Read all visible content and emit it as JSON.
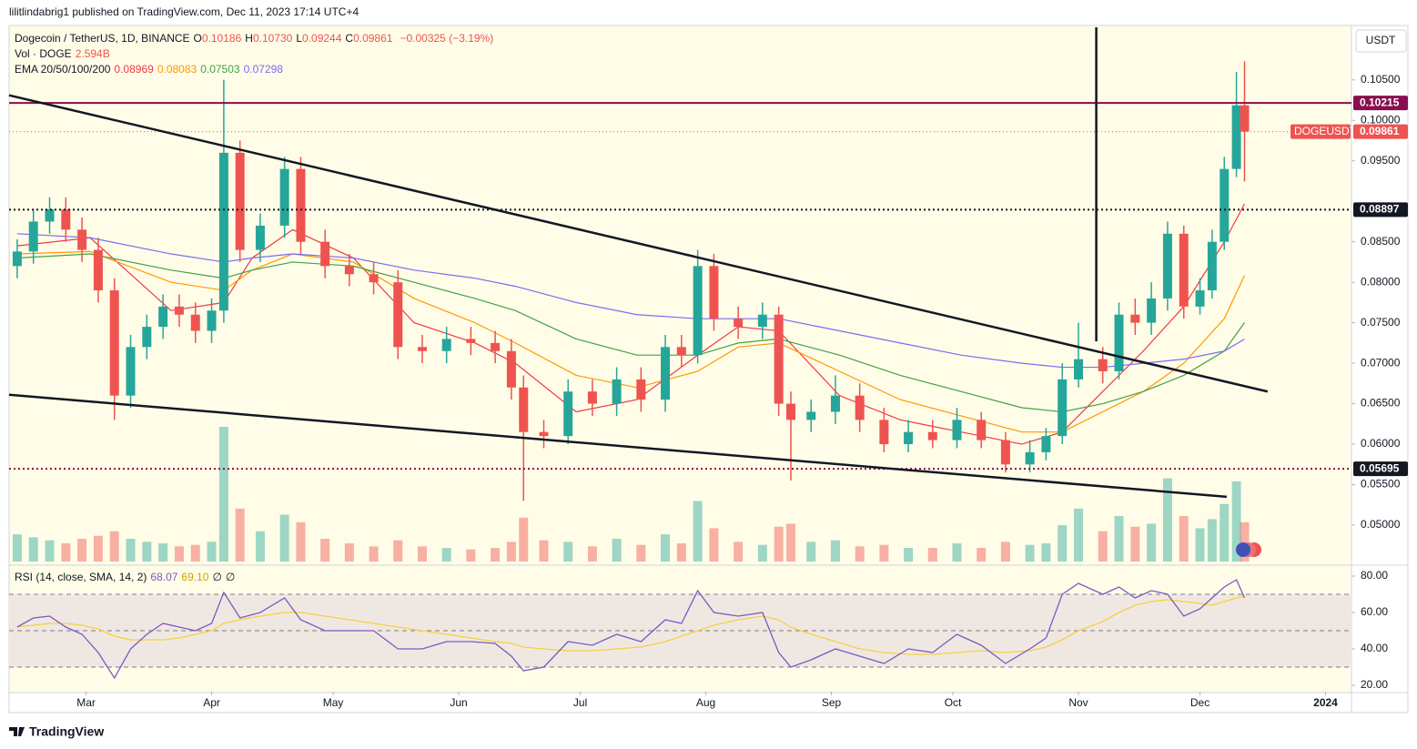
{
  "header": {
    "publisher": "lilitlindabrig1 published on TradingView.com, Dec 11, 2023 17:14 UTC+4",
    "symbol": "Dogecoin / TetherUS, 1D, BINANCE",
    "ohlc": [
      {
        "key": "O",
        "value": "0.10186"
      },
      {
        "key": "H",
        "value": "0.10730"
      },
      {
        "key": "L",
        "value": "0.09244"
      },
      {
        "key": "C",
        "value": "0.09861"
      }
    ],
    "change": "−0.00325 (−3.19%)",
    "volume_label": "Vol · DOGE",
    "volume_value": "2.594B",
    "ema_label": "EMA 20/50/100/200",
    "rsi_label": "RSI (14, close, SMA, 14, 2)",
    "rsi_values": [
      "68.07",
      "69.10",
      "∅",
      "∅"
    ],
    "currency": "USDT",
    "ticker": "DOGEUSDT",
    "brand": "TradingView"
  },
  "chart_data": {
    "type": "candlestick",
    "x": [
      42,
      46,
      50,
      54,
      58,
      62,
      66,
      70,
      74,
      78,
      82,
      86,
      90,
      93,
      97,
      102,
      108,
      112,
      118,
      124,
      130,
      136,
      142,
      148,
      154,
      160,
      164,
      167,
      172,
      178,
      184,
      190,
      196,
      202,
      206,
      210,
      214,
      220,
      226,
      230,
      233,
      238,
      244,
      250,
      256,
      262,
      268,
      274,
      280,
      286,
      292,
      296,
      300,
      304,
      310,
      314,
      318,
      322,
      326,
      330,
      334,
      337,
      340,
      343,
      345
    ],
    "open": [
      0.082,
      0.0838,
      0.0875,
      0.089,
      0.0865,
      0.084,
      0.079,
      0.066,
      0.072,
      0.0745,
      0.077,
      0.076,
      0.074,
      0.0765,
      0.096,
      0.084,
      0.087,
      0.094,
      0.085,
      0.082,
      0.081,
      0.08,
      0.072,
      0.0715,
      0.073,
      0.0725,
      0.0715,
      0.067,
      0.0615,
      0.061,
      0.0665,
      0.065,
      0.068,
      0.0655,
      0.072,
      0.071,
      0.082,
      0.0755,
      0.0745,
      0.076,
      0.065,
      0.063,
      0.064,
      0.066,
      0.063,
      0.06,
      0.0615,
      0.0605,
      0.063,
      0.0605,
      0.0575,
      0.059,
      0.061,
      0.068,
      0.0705,
      0.069,
      0.076,
      0.075,
      0.078,
      0.086,
      0.077,
      0.079,
      0.085,
      0.094,
      0.10186
    ],
    "high": [
      0.0853,
      0.089,
      0.0905,
      0.0905,
      0.088,
      0.0855,
      0.0805,
      0.0735,
      0.076,
      0.0785,
      0.0785,
      0.0775,
      0.078,
      0.105,
      0.0975,
      0.0885,
      0.0955,
      0.0955,
      0.0865,
      0.0835,
      0.0825,
      0.0815,
      0.0735,
      0.0745,
      0.0745,
      0.074,
      0.073,
      0.0685,
      0.063,
      0.068,
      0.068,
      0.0695,
      0.0695,
      0.0735,
      0.0735,
      0.084,
      0.0835,
      0.077,
      0.0775,
      0.077,
      0.0665,
      0.0655,
      0.0685,
      0.0675,
      0.0645,
      0.063,
      0.063,
      0.0645,
      0.064,
      0.0615,
      0.0605,
      0.062,
      0.07,
      0.075,
      0.072,
      0.0775,
      0.078,
      0.08,
      0.0875,
      0.087,
      0.0805,
      0.0865,
      0.0955,
      0.106,
      0.1073
    ],
    "low": [
      0.0805,
      0.0823,
      0.086,
      0.085,
      0.0825,
      0.0775,
      0.063,
      0.0645,
      0.0705,
      0.073,
      0.0745,
      0.0725,
      0.0725,
      0.075,
      0.0825,
      0.0825,
      0.0855,
      0.0835,
      0.0805,
      0.0795,
      0.0785,
      0.0705,
      0.07,
      0.07,
      0.071,
      0.07,
      0.0655,
      0.053,
      0.0595,
      0.06,
      0.0635,
      0.0635,
      0.064,
      0.064,
      0.0695,
      0.07,
      0.074,
      0.073,
      0.073,
      0.0635,
      0.0555,
      0.0615,
      0.0625,
      0.0615,
      0.059,
      0.059,
      0.0595,
      0.0595,
      0.0595,
      0.0565,
      0.0565,
      0.058,
      0.06,
      0.067,
      0.0675,
      0.068,
      0.0735,
      0.0735,
      0.0765,
      0.0755,
      0.076,
      0.078,
      0.084,
      0.093,
      0.09244
    ],
    "close": [
      0.0838,
      0.0875,
      0.089,
      0.0865,
      0.084,
      0.079,
      0.066,
      0.072,
      0.0745,
      0.077,
      0.076,
      0.074,
      0.0765,
      0.096,
      0.084,
      0.087,
      0.094,
      0.085,
      0.082,
      0.081,
      0.08,
      0.072,
      0.0715,
      0.073,
      0.0725,
      0.0715,
      0.067,
      0.0615,
      0.061,
      0.0665,
      0.065,
      0.068,
      0.0655,
      0.072,
      0.071,
      0.082,
      0.0755,
      0.0745,
      0.076,
      0.065,
      0.063,
      0.064,
      0.066,
      0.063,
      0.06,
      0.0615,
      0.0605,
      0.063,
      0.0605,
      0.0575,
      0.059,
      0.061,
      0.068,
      0.0705,
      0.069,
      0.076,
      0.075,
      0.078,
      0.086,
      0.077,
      0.079,
      0.085,
      0.094,
      0.10186,
      0.09861
    ],
    "volume": [
      1.8,
      1.6,
      1.4,
      1.2,
      1.5,
      1.7,
      2.0,
      1.5,
      1.3,
      1.2,
      1.0,
      1.1,
      1.3,
      8.9,
      3.5,
      2.0,
      3.1,
      2.6,
      1.5,
      1.2,
      1.0,
      1.4,
      1.0,
      0.9,
      0.8,
      0.9,
      1.3,
      2.9,
      1.4,
      1.3,
      1.0,
      1.5,
      1.1,
      1.8,
      1.2,
      4.0,
      2.2,
      1.3,
      1.1,
      2.3,
      2.5,
      1.3,
      1.4,
      1.0,
      1.1,
      0.9,
      0.9,
      1.2,
      0.9,
      1.3,
      1.1,
      1.2,
      2.4,
      3.5,
      2.0,
      3.0,
      2.3,
      2.5,
      5.5,
      3.0,
      2.2,
      2.8,
      3.8,
      5.3,
      2.594
    ],
    "volume_lim": [
      0,
      35.3
    ],
    "up_color": "#26a69a",
    "down_color": "#ef5350",
    "xlim": [
      40,
      371.4
    ],
    "xticks": [
      {
        "value": 59,
        "label": "Mar"
      },
      {
        "value": 90,
        "label": "Apr"
      },
      {
        "value": 120,
        "label": "May"
      },
      {
        "value": 151,
        "label": "Jun"
      },
      {
        "value": 181,
        "label": "Jul"
      },
      {
        "value": 212,
        "label": "Aug"
      },
      {
        "value": 243,
        "label": "Sep"
      },
      {
        "value": 273,
        "label": "Oct"
      },
      {
        "value": 304,
        "label": "Nov"
      },
      {
        "value": 334,
        "label": "Dec"
      },
      {
        "value": 365,
        "label": "2024"
      }
    ],
    "ylim": [
      0.0455,
      0.1115
    ],
    "yticks": [
      {
        "value": 0.05,
        "label": "0.05000"
      },
      {
        "value": 0.055,
        "label": "0.05500"
      },
      {
        "value": 0.06,
        "label": "0.06000"
      },
      {
        "value": 0.065,
        "label": "0.06500"
      },
      {
        "value": 0.07,
        "label": "0.07000"
      },
      {
        "value": 0.075,
        "label": "0.07500"
      },
      {
        "value": 0.08,
        "label": "0.08000"
      },
      {
        "value": 0.085,
        "label": "0.08500"
      },
      {
        "value": 0.095,
        "label": "0.09500"
      },
      {
        "value": 0.1,
        "label": "0.10000"
      },
      {
        "value": 0.105,
        "label": "0.10500"
      }
    ],
    "ema_x": [
      42,
      60,
      80,
      93,
      100,
      110,
      125,
      140,
      155,
      165,
      180,
      195,
      210,
      220,
      230,
      245,
      260,
      275,
      290,
      300,
      310,
      320,
      330,
      340,
      345
    ],
    "ema": [
      {
        "color": "#f23645",
        "values": [
          0.0845,
          0.0855,
          0.0765,
          0.0775,
          0.083,
          0.0865,
          0.083,
          0.075,
          0.0725,
          0.07,
          0.064,
          0.0655,
          0.071,
          0.0745,
          0.074,
          0.066,
          0.063,
          0.0615,
          0.06,
          0.0615,
          0.0665,
          0.0715,
          0.077,
          0.085,
          0.08969
        ]
      },
      {
        "color": "#ff9800",
        "values": [
          0.0835,
          0.0838,
          0.08,
          0.079,
          0.0815,
          0.0835,
          0.0825,
          0.078,
          0.075,
          0.0725,
          0.0685,
          0.067,
          0.069,
          0.072,
          0.0725,
          0.069,
          0.0655,
          0.0635,
          0.0615,
          0.0615,
          0.064,
          0.0665,
          0.07,
          0.0755,
          0.08083
        ]
      },
      {
        "color": "#43a047",
        "values": [
          0.083,
          0.0835,
          0.0815,
          0.0805,
          0.0815,
          0.0825,
          0.082,
          0.08,
          0.078,
          0.0765,
          0.073,
          0.071,
          0.071,
          0.0725,
          0.073,
          0.071,
          0.0685,
          0.0665,
          0.0645,
          0.064,
          0.065,
          0.0665,
          0.0685,
          0.0715,
          0.07503
        ]
      },
      {
        "color": "#7b6cf0",
        "values": [
          0.086,
          0.0855,
          0.0835,
          0.0825,
          0.083,
          0.0835,
          0.083,
          0.0815,
          0.0805,
          0.0795,
          0.0775,
          0.076,
          0.0755,
          0.0755,
          0.0755,
          0.074,
          0.0725,
          0.071,
          0.07,
          0.0695,
          0.0695,
          0.07,
          0.0705,
          0.0715,
          0.07298
        ]
      }
    ],
    "levels": [
      {
        "value": 0.10215,
        "color": "#880e4f",
        "style": "solid"
      },
      {
        "value": 0.08897,
        "color": "#131722",
        "style": "dotted"
      },
      {
        "value": 0.05695,
        "color": "#880e4f",
        "style": "dotted"
      }
    ],
    "trendlines": [
      {
        "x": [
          40,
          350.7
        ],
        "y": [
          0.1031,
          0.0665
        ]
      },
      {
        "x": [
          40,
          340.6
        ],
        "y": [
          0.0661,
          0.0535
        ]
      }
    ],
    "vline": {
      "x": 308.4,
      "y": [
        0.1115,
        0.0727
      ]
    },
    "rsi": {
      "color": "#7e57c2",
      "sma_color": "#f5d142",
      "values": [
        52,
        57,
        58,
        52,
        48,
        38,
        24,
        40,
        48,
        54,
        52,
        50,
        54,
        71,
        57,
        60,
        68,
        56,
        50,
        50,
        50,
        40,
        40,
        44,
        44,
        43,
        36,
        28,
        30,
        44,
        42,
        48,
        44,
        56,
        54,
        72,
        60,
        58,
        60,
        38,
        30,
        34,
        40,
        36,
        32,
        40,
        38,
        48,
        42,
        32,
        40,
        46,
        70,
        76,
        70,
        74,
        68,
        72,
        70,
        58,
        62,
        68,
        74,
        78,
        68.07
      ],
      "sma": [
        52,
        53,
        54,
        54,
        53,
        51,
        47,
        45,
        45,
        45,
        46,
        48,
        50,
        54,
        56,
        58,
        60,
        60,
        58,
        56,
        54,
        52,
        50,
        48,
        46,
        44,
        43,
        41,
        40,
        39,
        39,
        40,
        41,
        44,
        47,
        50,
        53,
        56,
        58,
        56,
        52,
        48,
        44,
        40,
        38,
        37,
        37,
        38,
        39,
        38,
        39,
        41,
        45,
        50,
        55,
        60,
        64,
        66,
        67,
        66,
        65,
        64,
        66,
        68,
        69.1
      ],
      "lim": [
        16.5,
        84
      ],
      "bands": [
        70,
        50,
        30
      ],
      "ticks": [
        {
          "value": 20,
          "label": "20.00"
        },
        {
          "value": 40,
          "label": "40.00"
        },
        {
          "value": 60,
          "label": "60.00"
        },
        {
          "value": 80,
          "label": "80.00"
        }
      ]
    }
  }
}
